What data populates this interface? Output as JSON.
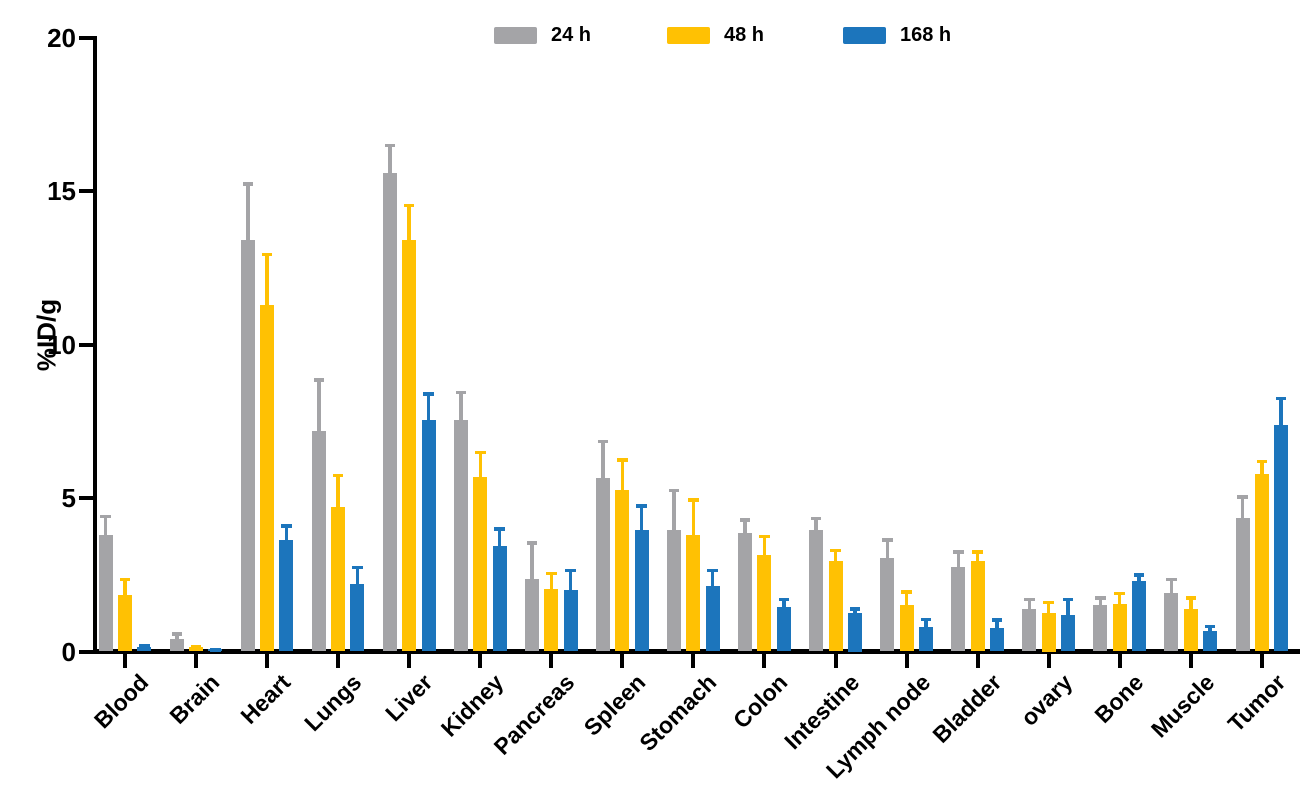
{
  "page": {
    "background": "#FFFFFF"
  },
  "chart_data": {
    "type": "bar",
    "title": "",
    "ylabel": "%ID/g",
    "ylim": [
      0,
      20
    ],
    "yticks": [
      0,
      5,
      10,
      15,
      20
    ],
    "grid": false,
    "legend_position": "top-center",
    "error_bars": "upper-only",
    "axis_color": "#000000",
    "categories": [
      "Blood",
      "Brain",
      "Heart",
      "Lungs",
      "Liver",
      "Kidney",
      "Pancreas",
      "Spleen",
      "Stomach",
      "Colon",
      "Intestine",
      "Lymph node",
      "Bladder",
      "ovary",
      "Bone",
      "Muscle",
      "Tumor"
    ],
    "series": [
      {
        "name": "24 h",
        "color": "#A4A4A7",
        "values": [
          3.8,
          0.42,
          13.4,
          7.2,
          15.6,
          7.55,
          2.35,
          5.65,
          3.95,
          3.85,
          3.95,
          3.05,
          2.75,
          1.4,
          1.5,
          1.9,
          4.35
        ],
        "errors": [
          0.65,
          0.2,
          1.9,
          1.7,
          0.95,
          0.95,
          1.25,
          1.25,
          1.35,
          0.5,
          0.45,
          0.65,
          0.55,
          0.35,
          0.3,
          0.5,
          0.75
        ]
      },
      {
        "name": "48 h",
        "color": "#FFC103",
        "values": [
          1.85,
          0.16,
          11.3,
          4.7,
          13.4,
          5.7,
          2.05,
          5.25,
          3.8,
          3.15,
          2.95,
          1.5,
          2.95,
          1.25,
          1.55,
          1.4,
          5.8
        ],
        "errors": [
          0.55,
          0.06,
          1.7,
          1.1,
          1.2,
          0.85,
          0.55,
          1.05,
          1.2,
          0.65,
          0.4,
          0.5,
          0.35,
          0.4,
          0.4,
          0.4,
          0.45
        ]
      },
      {
        "name": "168 h",
        "color": "#1C75BC",
        "values": [
          0.15,
          0.07,
          3.65,
          2.2,
          7.55,
          3.45,
          2.0,
          3.95,
          2.15,
          1.45,
          1.25,
          0.8,
          0.78,
          1.2,
          2.3,
          0.67,
          7.4
        ],
        "errors": [
          0.08,
          0.04,
          0.5,
          0.6,
          0.9,
          0.6,
          0.7,
          0.85,
          0.55,
          0.3,
          0.2,
          0.3,
          0.3,
          0.55,
          0.25,
          0.2,
          0.9
        ]
      }
    ]
  }
}
